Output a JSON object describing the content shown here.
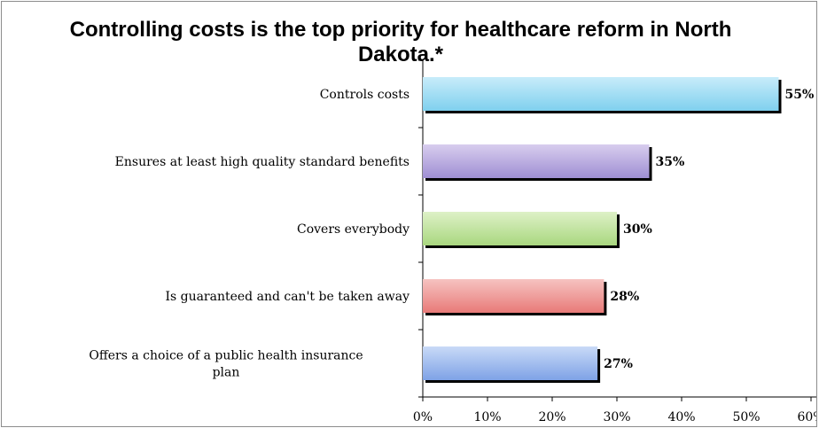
{
  "chart_data": {
    "type": "bar",
    "orientation": "horizontal",
    "title": "Controlling costs is the top priority for healthcare reform in North Dakota.*",
    "categories": [
      "Controls costs",
      "Ensures at least high quality standard benefits",
      "Covers everybody",
      "Is guaranteed and can't be taken away",
      "Offers a choice of a public health insurance plan"
    ],
    "values": [
      55,
      35,
      30,
      28,
      27
    ],
    "value_labels": [
      "55%",
      "35%",
      "30%",
      "28%",
      "27%"
    ],
    "xlim": [
      0,
      60
    ],
    "x_ticks": [
      "0%",
      "10%",
      "20%",
      "30%",
      "40%",
      "50%",
      "60%"
    ],
    "grid": false,
    "legend": "none",
    "colors": [
      "#7fd0ee",
      "#9f8fd3",
      "#a9d77f",
      "#e87a78",
      "#7ea2e6"
    ],
    "colors_light": [
      "#c8ecfa",
      "#d8cdee",
      "#def1c7",
      "#f6c3c1",
      "#c9daf7"
    ]
  }
}
